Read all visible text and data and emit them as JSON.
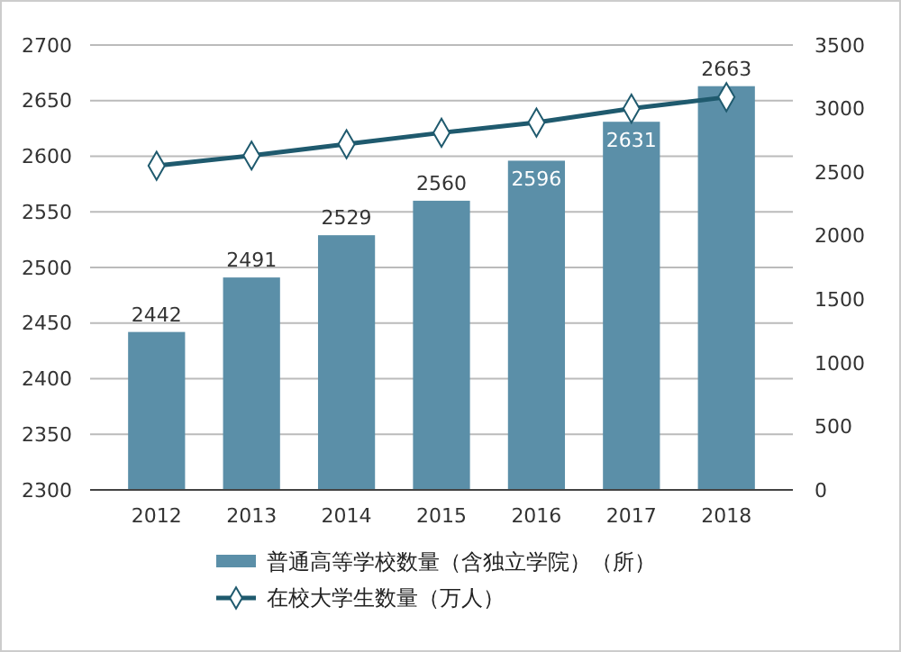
{
  "chart_data": {
    "type": "bar",
    "categories": [
      "2012",
      "2013",
      "2014",
      "2015",
      "2016",
      "2017",
      "2018"
    ],
    "series": [
      {
        "name": "普通高等学校数量（含独立学院）（所）",
        "color": "#5b8fa8",
        "values": [
          2442,
          2491,
          2529,
          2560,
          2596,
          2631,
          2663
        ],
        "value_labels": [
          "2442",
          "2491",
          "2529",
          "2560",
          "2596",
          "2631",
          "2663"
        ]
      },
      {
        "name": "在校大学生数量（万人）",
        "type": "line",
        "axis": "y2",
        "color": "#1f5a6e",
        "marker": "diamond",
        "values": [
          2550,
          2630,
          2720,
          2810,
          2890,
          3000,
          3090
        ]
      }
    ],
    "ylim": [
      2300,
      2700
    ],
    "yticks": [
      2300,
      2350,
      2400,
      2450,
      2500,
      2550,
      2600,
      2650,
      2700
    ],
    "y2lim": [
      0,
      3500
    ],
    "y2ticks": [
      0,
      500,
      1000,
      1500,
      2000,
      2500,
      3000,
      3500
    ],
    "grid": "y",
    "legend": "bottom"
  }
}
